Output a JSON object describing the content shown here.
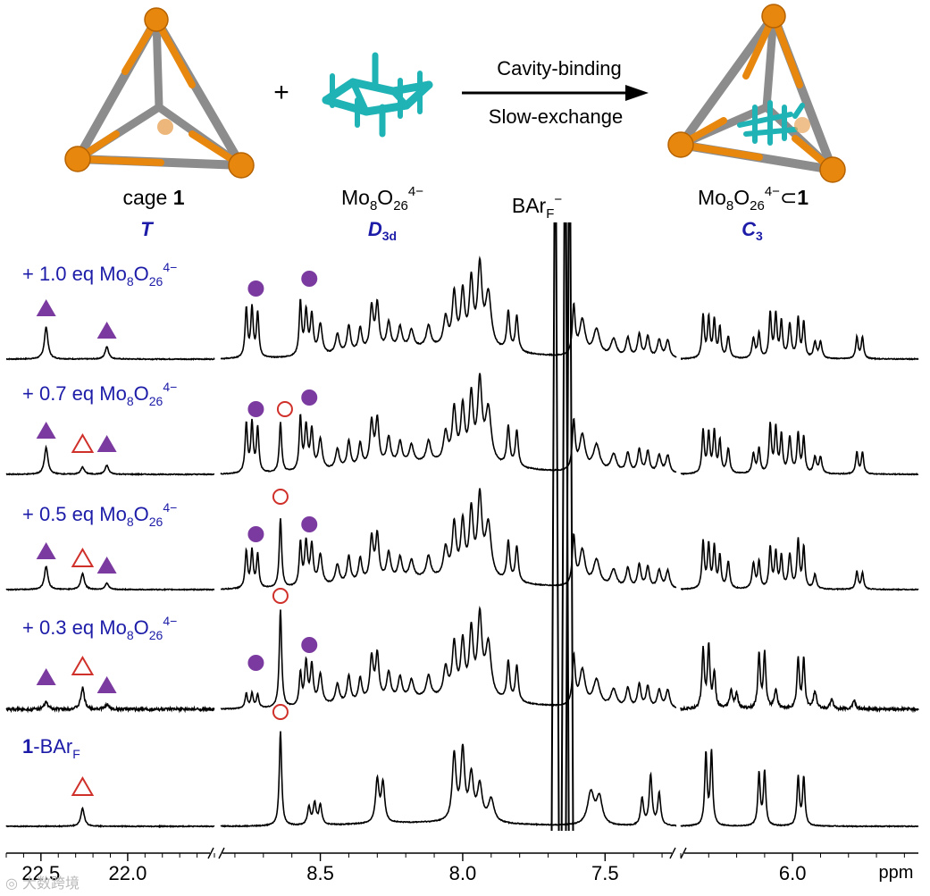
{
  "header": {
    "cage_label_prefix": "cage ",
    "cage_label_bold": "1",
    "cage_symmetry": "T",
    "plus": "+",
    "guest_formula_base": "Mo",
    "guest_formula_sub1": "8",
    "guest_formula_o": "O",
    "guest_formula_sub2": "26",
    "guest_formula_sup": "4−",
    "guest_symmetry_main": "D",
    "guest_symmetry_sub": "3d",
    "arrow_top": "Cavity-binding",
    "arrow_bottom": "Slow-exchange",
    "complex_formula_base": "Mo",
    "complex_formula_sub1": "8",
    "complex_formula_o": "O",
    "complex_formula_sub2": "26",
    "complex_formula_sup": "4−",
    "complex_formula_tail": "⊂",
    "complex_formula_bold": "1",
    "complex_symmetry": "C",
    "complex_symmetry_sub": "3",
    "counterion_main": "BAr",
    "counterion_sub": "F",
    "counterion_sup": "−"
  },
  "traces": [
    {
      "label_prefix": "+ 1.0 eq Mo",
      "sub1": "8",
      "o": "O",
      "sub2": "26",
      "sup": "4−"
    },
    {
      "label_prefix": "+ 0.7 eq Mo",
      "sub1": "8",
      "o": "O",
      "sub2": "26",
      "sup": "4−"
    },
    {
      "label_prefix": "+ 0.5 eq Mo",
      "sub1": "8",
      "o": "O",
      "sub2": "26",
      "sup": "4−"
    },
    {
      "label_prefix": "+ 0.3 eq Mo",
      "sub1": "8",
      "o": "O",
      "sub2": "26",
      "sup": "4−"
    },
    {
      "label_bold": "1",
      "label_rest": "-BAr",
      "label_sub": "F"
    }
  ],
  "colors": {
    "spectrum": "#000000",
    "label_blue": "#1c1ca8",
    "filled_marker": "#7a3aa0",
    "open_marker": "#d0302a",
    "orange": "#e8870e",
    "grey": "#8c8c8c",
    "teal": "#1fb3b5"
  },
  "chart_data": {
    "type": "line",
    "title": "",
    "xlabel": "ppm",
    "ylabel": "",
    "x_direction": "decreasing",
    "segments": [
      {
        "name": "left",
        "xlim": [
          22.7,
          21.5
        ],
        "ticks": [
          22.5,
          22.0
        ]
      },
      {
        "name": "middle",
        "xlim": [
          8.85,
          7.25
        ],
        "ticks": [
          8.5,
          8.0,
          7.5
        ]
      },
      {
        "name": "right",
        "xlim": [
          6.4,
          5.55
        ],
        "ticks": [
          6.0
        ]
      }
    ],
    "tick_labels": [
      "22.5",
      "22.0",
      "8.5",
      "8.0",
      "7.5",
      "6.0",
      "ppm"
    ],
    "series": [
      {
        "name": "+ 1.0 eq Mo8O26 4−",
        "filled_triangle_ppm": [
          22.47,
          22.12
        ],
        "filled_circle_ppm": [
          8.72,
          8.57
        ],
        "open_triangle_ppm": [],
        "open_circle_ppm": []
      },
      {
        "name": "+ 0.7 eq Mo8O26 4−",
        "filled_triangle_ppm": [
          22.47,
          22.12
        ],
        "filled_circle_ppm": [
          8.72,
          8.57
        ],
        "open_triangle_ppm": [
          22.26
        ],
        "open_circle_ppm": [
          8.64
        ]
      },
      {
        "name": "+ 0.5 eq Mo8O26 4−",
        "filled_triangle_ppm": [
          22.47,
          22.12
        ],
        "filled_circle_ppm": [
          8.72,
          8.57
        ],
        "open_triangle_ppm": [
          22.26
        ],
        "open_circle_ppm": [
          8.64
        ]
      },
      {
        "name": "+ 0.3 eq Mo8O26 4−",
        "filled_triangle_ppm": [
          22.47,
          22.12
        ],
        "filled_circle_ppm": [
          8.72,
          8.57
        ],
        "open_triangle_ppm": [
          22.26
        ],
        "open_circle_ppm": [
          8.64
        ]
      },
      {
        "name": "1-BArF",
        "filled_triangle_ppm": [],
        "filled_circle_ppm": [],
        "open_triangle_ppm": [
          22.26
        ],
        "open_circle_ppm": [
          8.64
        ]
      }
    ],
    "annotations": [
      "BArF−"
    ]
  }
}
